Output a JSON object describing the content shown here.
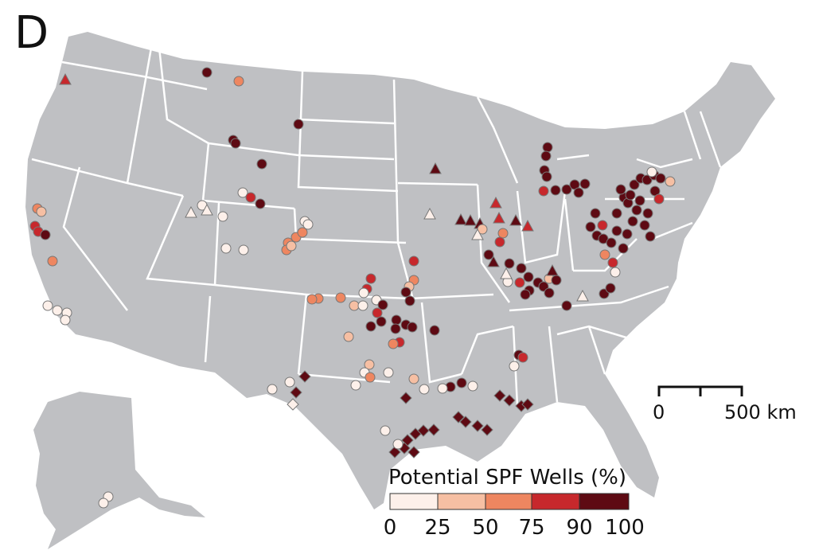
{
  "panel_label": "D",
  "legend": {
    "title": "Potential SPF Wells (%)",
    "ticks": [
      "0",
      "25",
      "50",
      "75",
      "90",
      "100"
    ],
    "bins": [
      {
        "range": "0-25",
        "color": "#fdf0ea"
      },
      {
        "range": "25-50",
        "color": "#f6bfa3"
      },
      {
        "range": "50-75",
        "color": "#ee8660"
      },
      {
        "range": "75-90",
        "color": "#c7282c"
      },
      {
        "range": "90-100",
        "color": "#5e0a13"
      }
    ]
  },
  "scale_bar": {
    "left_label": "0",
    "right_label": "500 km"
  },
  "colors": {
    "land": "#bfc0c3",
    "borders": "#ffffff",
    "marker_outline": "#777777"
  },
  "marker_shapes": [
    "circle",
    "triangle",
    "diamond"
  ]
}
